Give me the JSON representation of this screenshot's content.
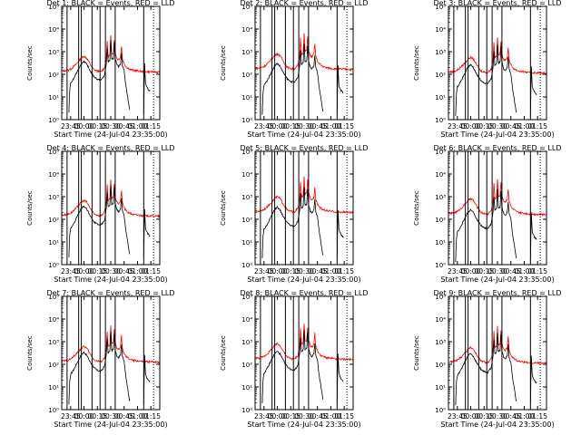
{
  "chart_data": {
    "type": "line",
    "layout": "3x3 grid",
    "y_scale": "log",
    "ylim": [
      1,
      100000
    ],
    "ytick_values": [
      1,
      10,
      100,
      1000,
      10000,
      100000
    ],
    "ytick_labels": [
      "10⁰",
      "10¹",
      "10²",
      "10³",
      "10⁴",
      "10⁵"
    ],
    "ylabel": "Counts/sec",
    "xlabel": "Start Time (24-Jul-04 23:35:00)",
    "xlim_minutes": [
      0,
      110
    ],
    "xticks": [
      {
        "m": 10,
        "label": "23:45"
      },
      {
        "m": 25,
        "label": "00:00"
      },
      {
        "m": 40,
        "label": "00:15"
      },
      {
        "m": 55,
        "label": "00:30"
      },
      {
        "m": 70,
        "label": "00:45"
      },
      {
        "m": 85,
        "label": "01:00"
      },
      {
        "m": 100,
        "label": "01:15"
      }
    ],
    "colors": {
      "events": "#000000",
      "lld": "#ff0000",
      "axis": "#000000"
    },
    "interval_lines_minutes": [
      6,
      19,
      22,
      34,
      43,
      49,
      60,
      92
    ],
    "dotted_line_minute": 103,
    "lld_template": [
      [
        0,
        140
      ],
      [
        5,
        145
      ],
      [
        10,
        170
      ],
      [
        15,
        250
      ],
      [
        20,
        420
      ],
      [
        23,
        560
      ],
      [
        25,
        620
      ],
      [
        28,
        520
      ],
      [
        32,
        280
      ],
      [
        36,
        160
      ],
      [
        40,
        140
      ],
      [
        44,
        130
      ],
      [
        48,
        190
      ],
      [
        50,
        500
      ],
      [
        51,
        3000
      ],
      [
        52,
        600
      ],
      [
        54,
        700
      ],
      [
        55,
        5000
      ],
      [
        56,
        800
      ],
      [
        58,
        900
      ],
      [
        59,
        3500
      ],
      [
        60,
        900
      ],
      [
        62,
        500
      ],
      [
        64,
        450
      ],
      [
        66,
        600
      ],
      [
        67,
        1800
      ],
      [
        68,
        500
      ],
      [
        70,
        300
      ],
      [
        72,
        220
      ],
      [
        76,
        170
      ],
      [
        80,
        150
      ],
      [
        86,
        140
      ],
      [
        92,
        130
      ],
      [
        100,
        130
      ],
      [
        110,
        125
      ]
    ],
    "events_template": [
      [
        8,
        2
      ],
      [
        9,
        20
      ],
      [
        10,
        40
      ],
      [
        14,
        70
      ],
      [
        18,
        150
      ],
      [
        22,
        300
      ],
      [
        25,
        380
      ],
      [
        28,
        280
      ],
      [
        32,
        140
      ],
      [
        36,
        80
      ],
      [
        40,
        60
      ],
      [
        44,
        55
      ],
      [
        48,
        90
      ],
      [
        50,
        300
      ],
      [
        51,
        1500
      ],
      [
        52,
        350
      ],
      [
        54,
        420
      ],
      [
        55,
        3000
      ],
      [
        56,
        450
      ],
      [
        58,
        500
      ],
      [
        59,
        2500
      ],
      [
        60,
        500
      ],
      [
        62,
        250
      ],
      [
        64,
        220
      ],
      [
        66,
        300
      ],
      [
        67,
        900
      ],
      [
        68,
        250
      ],
      [
        70,
        150
      ],
      [
        72,
        30
      ],
      [
        74,
        10
      ],
      [
        76,
        3
      ],
      [
        92,
        2
      ],
      [
        93,
        300
      ],
      [
        94,
        40
      ],
      [
        96,
        25
      ],
      [
        99,
        18
      ]
    ],
    "panels": [
      {
        "title": "Det 1: BLACK = Events, RED = LLD",
        "lld_scale": 1.0,
        "events_scale": 1.0
      },
      {
        "title": "Det 2: BLACK = Events, RED = LLD",
        "lld_scale": 1.3,
        "events_scale": 0.8
      },
      {
        "title": "Det 3: BLACK = Events, RED = LLD",
        "lld_scale": 0.9,
        "events_scale": 0.7
      },
      {
        "title": "Det 4: BLACK = Events, RED = LLD",
        "lld_scale": 1.1,
        "events_scale": 1.0
      },
      {
        "title": "Det 5: BLACK = Events, RED = LLD",
        "lld_scale": 1.6,
        "events_scale": 0.9
      },
      {
        "title": "Det 6: BLACK = Events, RED = LLD",
        "lld_scale": 1.3,
        "events_scale": 0.7
      },
      {
        "title": "Det 7: BLACK = Events, RED = LLD",
        "lld_scale": 1.0,
        "events_scale": 0.9
      },
      {
        "title": "Det 8: BLACK = Events, RED = LLD",
        "lld_scale": 1.3,
        "events_scale": 1.0
      },
      {
        "title": "Det 9: BLACK = Events, RED = LLD",
        "lld_scale": 0.9,
        "events_scale": 0.8
      }
    ]
  }
}
